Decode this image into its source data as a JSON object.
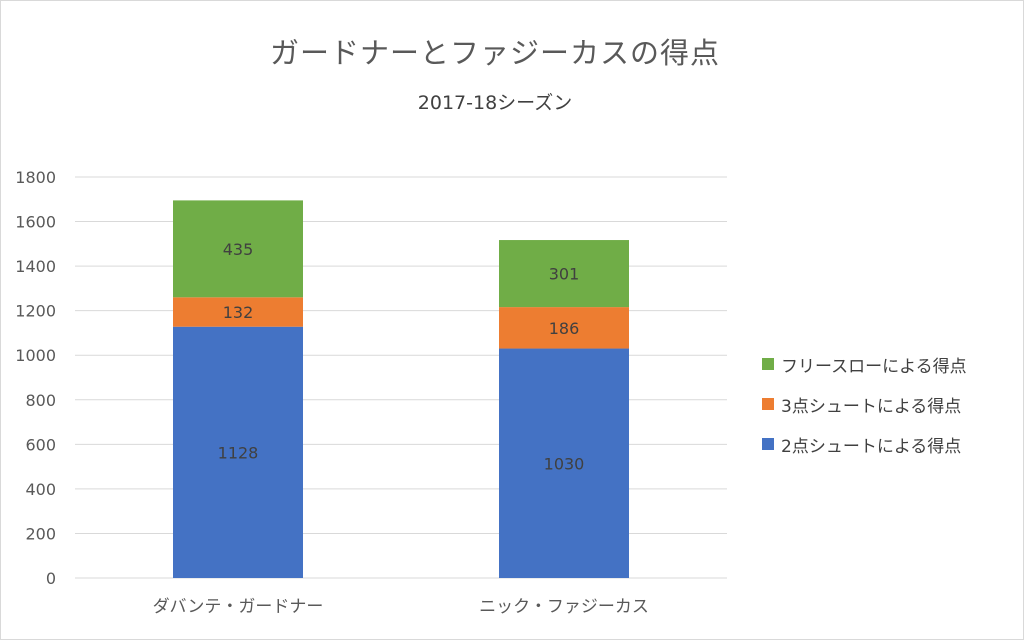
{
  "chart_data": {
    "type": "bar",
    "stacked": true,
    "title": "ガードナーとファジーカスの得点",
    "subtitle": "2017-18シーズン",
    "categories": [
      "ダバンテ・ガードナー",
      "ニック・ファジーカス"
    ],
    "series": [
      {
        "name": "2点シュートによる得点",
        "color": "#4472C4",
        "values": [
          1128,
          1030
        ]
      },
      {
        "name": "3点シュートによる得点",
        "color": "#ED7D31",
        "values": [
          132,
          186
        ]
      },
      {
        "name": "フリースローによる得点",
        "color": "#70AD47",
        "values": [
          435,
          301
        ]
      }
    ],
    "ylim": [
      0,
      1800
    ],
    "yticks": [
      "0",
      "200",
      "400",
      "600",
      "800",
      "1000",
      "1200",
      "1400",
      "1600",
      "1800"
    ],
    "grid": true,
    "legend_position": "right",
    "data_labels": true
  }
}
